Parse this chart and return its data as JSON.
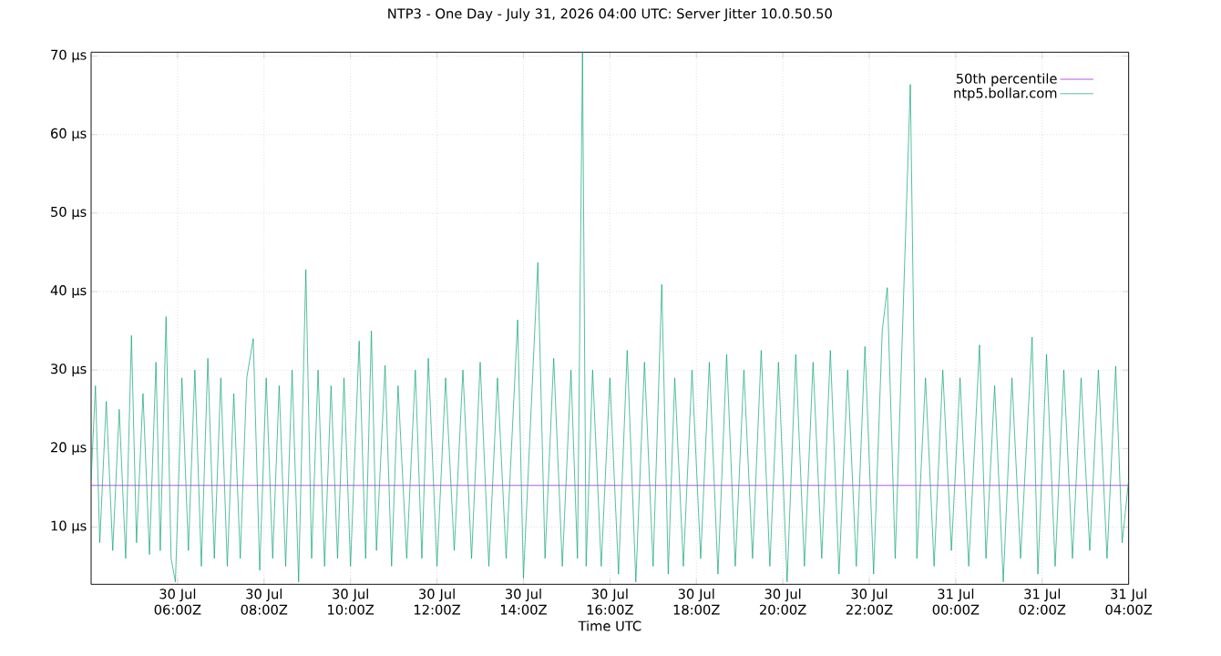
{
  "chart_data": {
    "type": "line",
    "title": "NTP3 - One Day - July 31, 2026 04:00 UTC: Server Jitter 10.0.50.50",
    "xlabel": "Time UTC",
    "x": [
      "2026-07-30T04:00",
      "2026-07-30T04:06",
      "2026-07-30T04:12",
      "2026-07-30T04:21",
      "2026-07-30T04:30",
      "2026-07-30T04:39",
      "2026-07-30T04:48",
      "2026-07-30T04:56",
      "2026-07-30T05:03",
      "2026-07-30T05:12",
      "2026-07-30T05:21",
      "2026-07-30T05:30",
      "2026-07-30T05:36",
      "2026-07-30T05:44",
      "2026-07-30T05:51",
      "2026-07-30T05:57",
      "2026-07-30T06:06",
      "2026-07-30T06:15",
      "2026-07-30T06:24",
      "2026-07-30T06:33",
      "2026-07-30T06:42",
      "2026-07-30T06:51",
      "2026-07-30T07:00",
      "2026-07-30T07:09",
      "2026-07-30T07:18",
      "2026-07-30T07:27",
      "2026-07-30T07:36",
      "2026-07-30T07:45",
      "2026-07-30T07:54",
      "2026-07-30T08:03",
      "2026-07-30T08:12",
      "2026-07-30T08:21",
      "2026-07-30T08:30",
      "2026-07-30T08:39",
      "2026-07-30T08:48",
      "2026-07-30T08:58",
      "2026-07-30T09:06",
      "2026-07-30T09:15",
      "2026-07-30T09:24",
      "2026-07-30T09:33",
      "2026-07-30T09:42",
      "2026-07-30T09:51",
      "2026-07-30T10:00",
      "2026-07-30T10:12",
      "2026-07-30T10:21",
      "2026-07-30T10:29",
      "2026-07-30T10:36",
      "2026-07-30T10:48",
      "2026-07-30T10:57",
      "2026-07-30T11:06",
      "2026-07-30T11:18",
      "2026-07-30T11:30",
      "2026-07-30T11:39",
      "2026-07-30T11:48",
      "2026-07-30T12:00",
      "2026-07-30T12:12",
      "2026-07-30T12:24",
      "2026-07-30T12:36",
      "2026-07-30T12:48",
      "2026-07-30T13:00",
      "2026-07-30T13:12",
      "2026-07-30T13:24",
      "2026-07-30T13:36",
      "2026-07-30T13:52",
      "2026-07-30T14:00",
      "2026-07-30T14:20",
      "2026-07-30T14:30",
      "2026-07-30T14:42",
      "2026-07-30T14:54",
      "2026-07-30T15:06",
      "2026-07-30T15:15",
      "2026-07-30T15:22",
      "2026-07-30T15:27",
      "2026-07-30T15:36",
      "2026-07-30T15:48",
      "2026-07-30T16:00",
      "2026-07-30T16:12",
      "2026-07-30T16:24",
      "2026-07-30T16:36",
      "2026-07-30T16:48",
      "2026-07-30T17:00",
      "2026-07-30T17:12",
      "2026-07-30T17:21",
      "2026-07-30T17:30",
      "2026-07-30T17:42",
      "2026-07-30T17:54",
      "2026-07-30T18:06",
      "2026-07-30T18:18",
      "2026-07-30T18:30",
      "2026-07-30T18:42",
      "2026-07-30T18:54",
      "2026-07-30T19:06",
      "2026-07-30T19:18",
      "2026-07-30T19:30",
      "2026-07-30T19:42",
      "2026-07-30T19:54",
      "2026-07-30T20:06",
      "2026-07-30T20:18",
      "2026-07-30T20:30",
      "2026-07-30T20:42",
      "2026-07-30T20:54",
      "2026-07-30T21:06",
      "2026-07-30T21:18",
      "2026-07-30T21:30",
      "2026-07-30T21:42",
      "2026-07-30T21:54",
      "2026-07-30T22:06",
      "2026-07-30T22:18",
      "2026-07-30T22:25",
      "2026-07-30T22:36",
      "2026-07-30T22:57",
      "2026-07-30T23:06",
      "2026-07-30T23:18",
      "2026-07-30T23:30",
      "2026-07-30T23:42",
      "2026-07-30T23:54",
      "2026-07-31T00:06",
      "2026-07-31T00:18",
      "2026-07-31T00:33",
      "2026-07-31T00:42",
      "2026-07-31T00:54",
      "2026-07-31T01:06",
      "2026-07-31T01:18",
      "2026-07-31T01:30",
      "2026-07-31T01:46",
      "2026-07-31T01:54",
      "2026-07-31T02:06",
      "2026-07-31T02:18",
      "2026-07-31T02:30",
      "2026-07-31T02:42",
      "2026-07-31T02:54",
      "2026-07-31T03:06",
      "2026-07-31T03:18",
      "2026-07-31T03:30",
      "2026-07-31T03:42",
      "2026-07-31T03:51",
      "2026-07-31T04:00"
    ],
    "series": [
      {
        "name": "50th percentile",
        "color": "#9400d3",
        "x": [
          "2026-07-30T04:00",
          "2026-07-31T04:00"
        ],
        "values": [
          15.3,
          15.3
        ]
      },
      {
        "name": "ntp5.bollar.com",
        "color": "#009e73",
        "values": [
          16,
          28,
          8,
          26,
          7,
          25,
          6,
          34.4,
          8,
          27,
          6.5,
          31,
          7,
          36.8,
          6,
          3,
          29,
          7,
          30,
          5,
          31.5,
          6,
          29,
          5,
          27,
          6,
          29,
          34,
          4.5,
          29,
          6,
          28,
          5,
          30,
          3,
          42.8,
          6,
          30,
          5,
          28,
          6,
          29,
          5,
          33.7,
          6,
          35,
          7,
          30.6,
          5,
          28,
          6,
          30,
          6,
          31.5,
          5,
          29,
          7,
          30,
          6,
          31,
          5,
          29,
          6,
          36.4,
          3.5,
          43.7,
          6,
          31.5,
          5,
          30,
          6,
          70.5,
          5,
          30,
          5,
          29,
          4,
          32.5,
          3,
          31,
          5,
          40.9,
          4,
          29,
          5,
          30,
          6,
          31,
          4,
          32,
          5,
          30,
          6,
          32.5,
          5,
          31,
          3,
          32,
          5,
          31,
          6,
          32.5,
          4,
          30,
          5,
          33,
          4,
          35,
          40.5,
          6,
          66.4,
          6,
          29,
          5,
          30,
          7,
          29,
          5,
          33.2,
          6,
          28,
          3,
          29,
          6,
          34.2,
          4,
          32,
          5,
          30,
          6,
          29,
          7,
          30,
          6,
          30.5,
          8,
          16
        ]
      }
    ],
    "xlim": [
      "2026-07-30T04:00",
      "2026-07-31T04:00"
    ],
    "ylim": [
      2.7,
      70.5
    ],
    "xticks": [
      {
        "value": "2026-07-30T06:00",
        "label": "30 Jul 06:00Z"
      },
      {
        "value": "2026-07-30T08:00",
        "label": "30 Jul 08:00Z"
      },
      {
        "value": "2026-07-30T10:00",
        "label": "30 Jul 10:00Z"
      },
      {
        "value": "2026-07-30T12:00",
        "label": "30 Jul 12:00Z"
      },
      {
        "value": "2026-07-30T14:00",
        "label": "30 Jul 14:00Z"
      },
      {
        "value": "2026-07-30T16:00",
        "label": "30 Jul 16:00Z"
      },
      {
        "value": "2026-07-30T18:00",
        "label": "30 Jul 18:00Z"
      },
      {
        "value": "2026-07-30T20:00",
        "label": "30 Jul 20:00Z"
      },
      {
        "value": "2026-07-30T22:00",
        "label": "30 Jul 22:00Z"
      },
      {
        "value": "2026-07-31T00:00",
        "label": "31 Jul 00:00Z"
      },
      {
        "value": "2026-07-31T02:00",
        "label": "31 Jul 02:00Z"
      },
      {
        "value": "2026-07-31T04:00",
        "label": "31 Jul 04:00Z"
      }
    ],
    "yticks": [
      {
        "value": 10,
        "label": "10 µs"
      },
      {
        "value": 20,
        "label": "20 µs"
      },
      {
        "value": 30,
        "label": "30 µs"
      },
      {
        "value": 40,
        "label": "40 µs"
      },
      {
        "value": 50,
        "label": "50 µs"
      },
      {
        "value": 60,
        "label": "60 µs"
      },
      {
        "value": 70,
        "label": "70 µs"
      }
    ],
    "grid": true,
    "legend": "top right",
    "line_style": "solid",
    "marker": "none"
  }
}
